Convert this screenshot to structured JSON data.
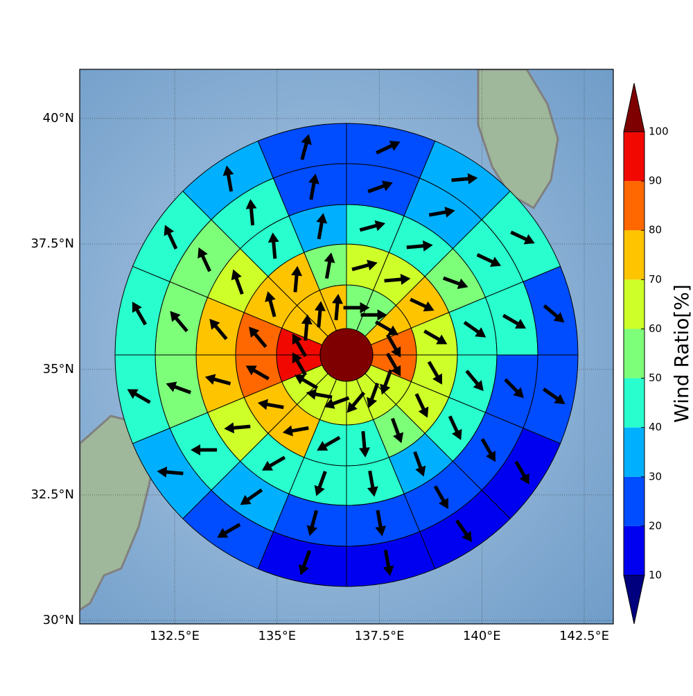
{
  "chart_data": {
    "type": "polar-grid-map",
    "xlim": [
      130.18,
      143.21
    ],
    "ylim": [
      29.93,
      40.98
    ],
    "xticks": [
      {
        "value": 132.5,
        "label": "132.5°E"
      },
      {
        "value": 135,
        "label": "135°E"
      },
      {
        "value": 137.5,
        "label": "137.5°E"
      },
      {
        "value": 140,
        "label": "140°E"
      },
      {
        "value": 142.5,
        "label": "142.5°E"
      }
    ],
    "yticks": [
      {
        "value": 30,
        "label": "30°N"
      },
      {
        "value": 32.5,
        "label": "32.5°N"
      },
      {
        "value": 35,
        "label": "35°N"
      },
      {
        "value": 37.5,
        "label": "37.5°N"
      },
      {
        "value": 40,
        "label": "40°N"
      }
    ],
    "grid": true,
    "colorbar": {
      "label": "Wind Ratio[%]",
      "ticks": [
        10,
        20,
        30,
        40,
        50,
        60,
        70,
        80,
        90,
        100
      ],
      "colors": [
        "#00007f",
        "#0000f1",
        "#004cff",
        "#00b0ff",
        "#29ffce",
        "#7dff7a",
        "#ceff29",
        "#ffc400",
        "#ff6800",
        "#f10800",
        "#7f0000"
      ]
    },
    "center_value": 105,
    "rings": [
      {
        "values": [
          55,
          55,
          75,
          85,
          85,
          65,
          65,
          65,
          65,
          65,
          65,
          95,
          95,
          75,
          75,
          75
        ],
        "directions": [
          90,
          90,
          120,
          150,
          150,
          200,
          200,
          220,
          250,
          280,
          300,
          330,
          330,
          5,
          5,
          5
        ]
      },
      {
        "values": [
          65,
          65,
          75,
          65,
          65,
          65,
          55,
          45,
          45,
          75,
          75,
          85,
          85,
          75,
          75,
          55
        ],
        "directions": [
          75,
          85,
          115,
          120,
          150,
          155,
          160,
          175,
          240,
          260,
          280,
          300,
          320,
          345,
          5,
          10
        ]
      },
      {
        "values": [
          45,
          45,
          55,
          45,
          45,
          45,
          35,
          45,
          45,
          45,
          65,
          75,
          75,
          65,
          45,
          35
        ],
        "directions": [
          75,
          85,
          110,
          125,
          140,
          155,
          160,
          170,
          200,
          240,
          265,
          285,
          320,
          340,
          355,
          10
        ]
      },
      {
        "values": [
          25,
          35,
          45,
          45,
          25,
          25,
          25,
          25,
          25,
          35,
          45,
          55,
          55,
          55,
          45,
          25
        ],
        "directions": [
          70,
          80,
          115,
          120,
          135,
          150,
          150,
          170,
          195,
          235,
          270,
          290,
          320,
          335,
          355,
          10
        ]
      },
      {
        "values": [
          25,
          35,
          45,
          25,
          25,
          15,
          15,
          15,
          15,
          25,
          35,
          45,
          45,
          45,
          35,
          25
        ],
        "directions": [
          65,
          85,
          115,
          130,
          125,
          150,
          145,
          170,
          200,
          240,
          275,
          300,
          330,
          335,
          350,
          15
        ]
      }
    ]
  }
}
